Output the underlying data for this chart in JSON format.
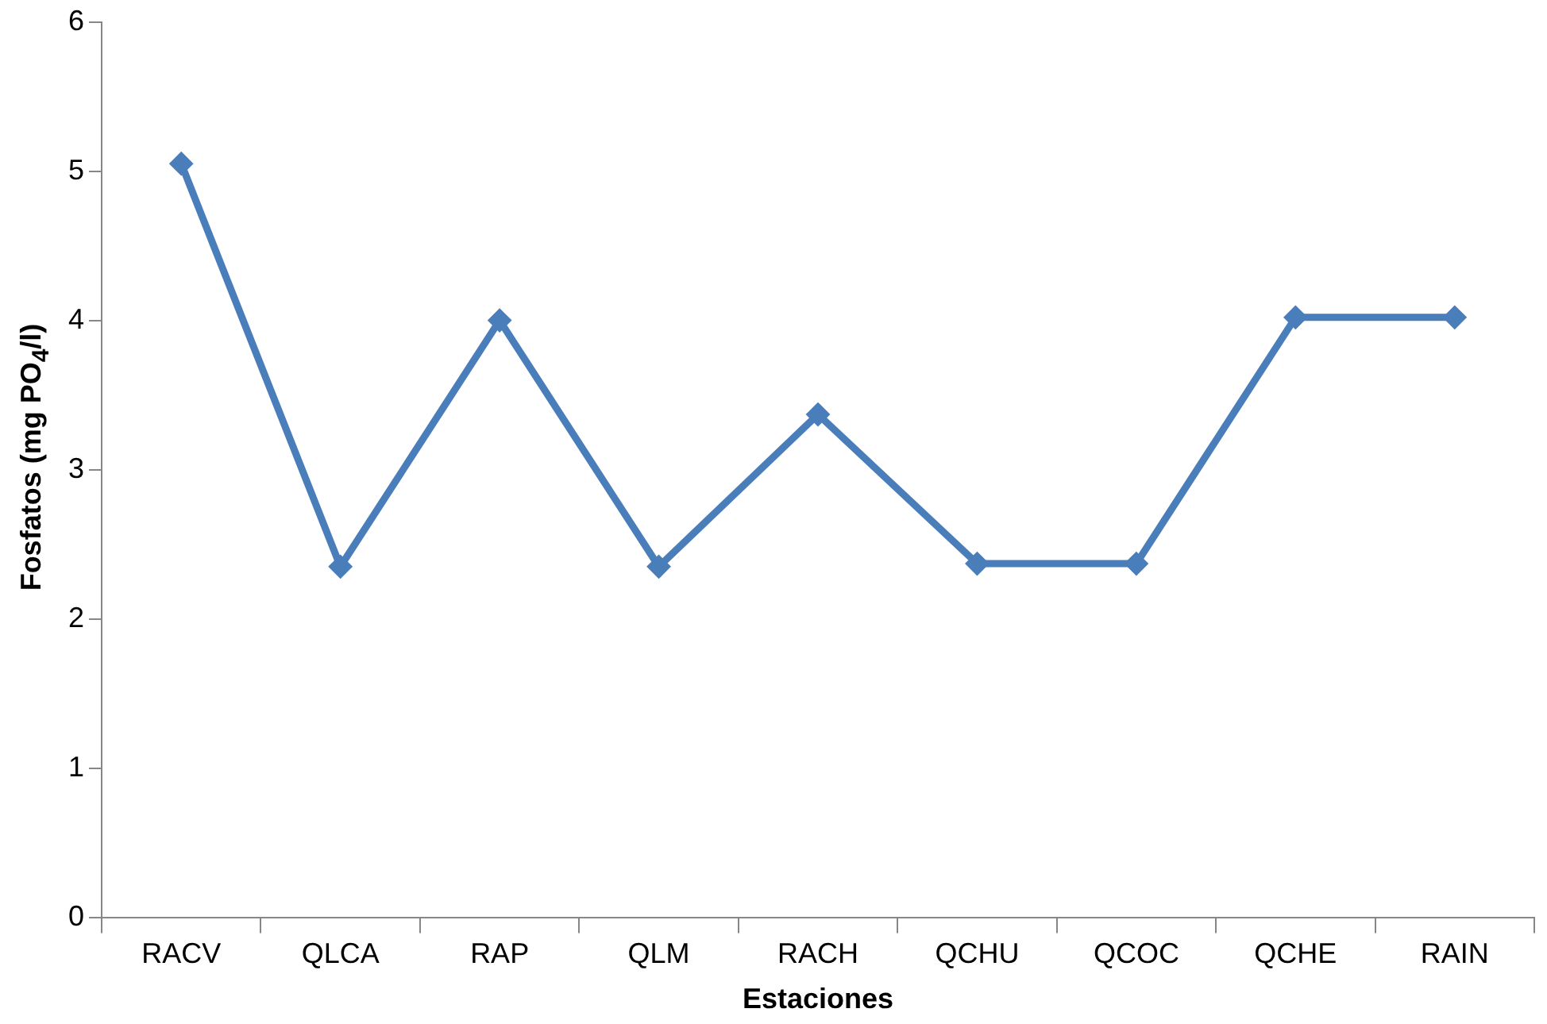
{
  "chart_data": {
    "type": "line",
    "xlabel": "Estaciones",
    "ylabel": "Fosfatos (mg PO$_{4}$/l)",
    "categories": [
      "RACV",
      "QLCA",
      "RAP",
      "QLM",
      "RACH",
      "QCHU",
      "QCOC",
      "QCHE",
      "RAIN"
    ],
    "series": [
      {
        "color": "#4a7ebb",
        "values": [
          5.05,
          2.35,
          4.0,
          2.35,
          3.37,
          2.37,
          2.37,
          4.02,
          4.02
        ]
      }
    ],
    "ylim": [
      0,
      6
    ],
    "yticks": [
      0,
      1,
      2,
      3,
      4,
      5,
      6
    ],
    "grid": false,
    "legend": false,
    "marker": "diamond",
    "line_style": "solid"
  }
}
